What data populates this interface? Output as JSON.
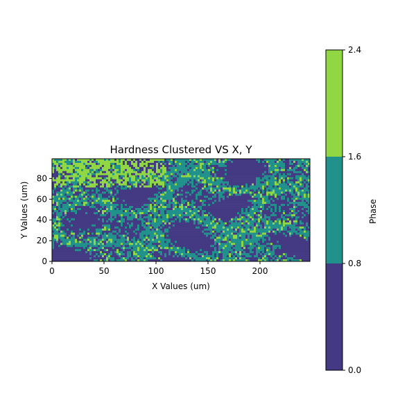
{
  "chart_data": [
    {
      "type": "heatmap",
      "title": "Hardness Clustered VS X, Y",
      "xlabel": "X Values (um)",
      "ylabel": "Y Values (um)",
      "xlim": [
        0,
        248
      ],
      "ylim": [
        0,
        99
      ],
      "xticks": [
        "0",
        "50",
        "100",
        "150",
        "200"
      ],
      "yticks": [
        "0",
        "20",
        "40",
        "60",
        "80"
      ],
      "grid": false,
      "phases": [
        {
          "value": 0,
          "color": "#443983"
        },
        {
          "value": 1,
          "color": "#21918c"
        },
        {
          "value": 2,
          "color": "#90d743"
        }
      ],
      "description": "Noisy spatial map of clustered hardness phases: phase 0 (dark purple) dominates, phase 1 (teal) forms veins and boundaries, phase 2 (light green) concentrates in the upper-left region (x 0–110, y 70–99) and thin streaks."
    },
    {
      "type": "colorbar",
      "label": "Phase",
      "ticks": [
        "0.0",
        "0.8",
        "1.6",
        "2.4"
      ],
      "range": [
        0,
        2.4
      ],
      "bands": [
        {
          "from": 0.0,
          "to": 0.8,
          "color": "#443983"
        },
        {
          "from": 0.8,
          "to": 1.6,
          "color": "#21918c"
        },
        {
          "from": 1.6,
          "to": 2.4,
          "color": "#90d743"
        }
      ]
    }
  ]
}
